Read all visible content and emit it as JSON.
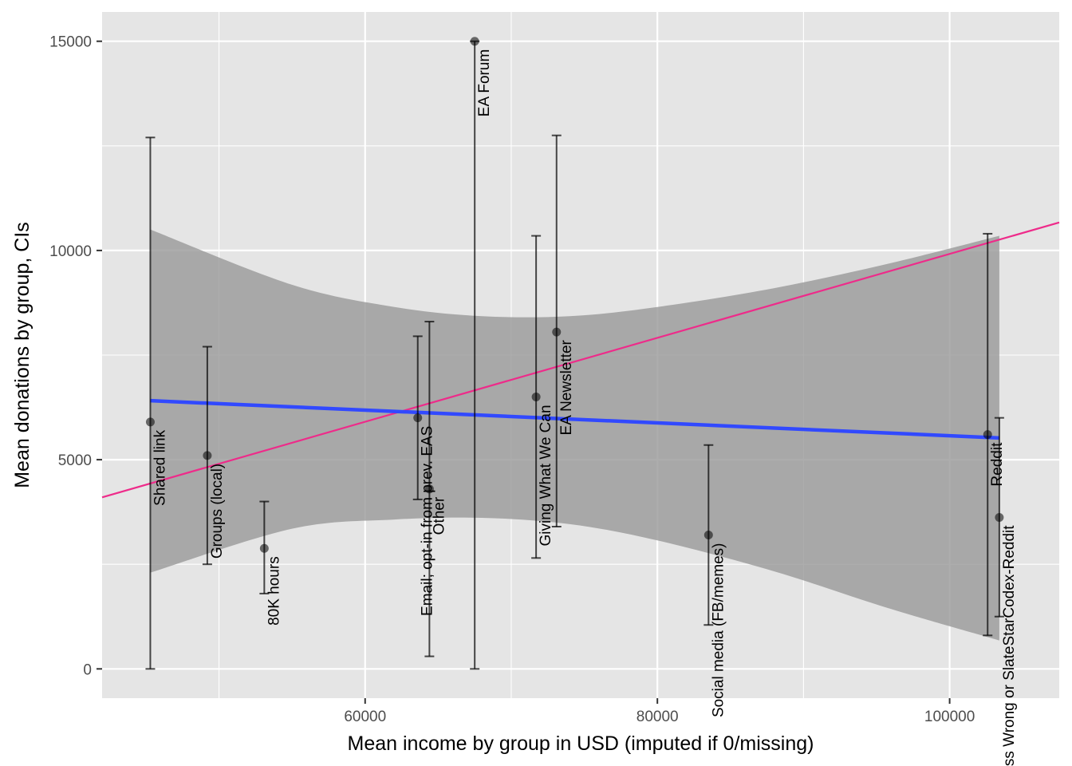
{
  "chart_data": {
    "type": "scatter",
    "xlabel": "Mean income by group in USD (imputed if 0/missing)",
    "ylabel": "Mean donations by group, CIs",
    "xlim": [
      42000,
      107500
    ],
    "ylim": [
      -700,
      15700
    ],
    "x_ticks": [
      60000,
      80000,
      100000
    ],
    "x_tick_labels": [
      "60000",
      "80000",
      "100000"
    ],
    "x_minor_ticks": [
      50000,
      70000,
      90000
    ],
    "y_ticks": [
      0,
      5000,
      10000,
      15000
    ],
    "y_tick_labels": [
      "0",
      "5000",
      "10000",
      "15000"
    ],
    "y_minor_ticks": [
      2500,
      7500,
      12500
    ],
    "grid": true,
    "points": [
      {
        "label": "Shared link",
        "x": 45300,
        "y": 5900,
        "ci_low": 0,
        "ci_high": 12700
      },
      {
        "label": "Groups (local)",
        "x": 49200,
        "y": 5100,
        "ci_low": 2500,
        "ci_high": 7700
      },
      {
        "label": "80K hours",
        "x": 53100,
        "y": 2880,
        "ci_low": 1800,
        "ci_high": 4000
      },
      {
        "label": "Email; opt-in from prev. EAS",
        "x": 63600,
        "y": 6000,
        "ci_low": 4050,
        "ci_high": 7950
      },
      {
        "label": "Other",
        "x": 64400,
        "y": 4300,
        "ci_low": 300,
        "ci_high": 8300
      },
      {
        "label": "EA Forum",
        "x": 67500,
        "y": 15000,
        "ci_low": 0,
        "ci_high": 15000
      },
      {
        "label": "Giving What We Can",
        "x": 71700,
        "y": 6500,
        "ci_low": 2650,
        "ci_high": 10350
      },
      {
        "label": "EA Newsletter",
        "x": 73100,
        "y": 8050,
        "ci_low": 3400,
        "ci_high": 12750
      },
      {
        "label": "Social media (FB/memes)",
        "x": 83500,
        "y": 3200,
        "ci_low": 1050,
        "ci_high": 5350
      },
      {
        "label": "Reddit",
        "x": 102600,
        "y": 5600,
        "ci_low": 800,
        "ci_high": 10400
      },
      {
        "label": "Less Wrong or SlateStarCodex-Reddit",
        "x": 103400,
        "y": 3620,
        "ci_low": 1250,
        "ci_high": 6000
      }
    ],
    "weighted_fit": {
      "x_start": 45300,
      "y_start": 6410,
      "x_end": 103400,
      "y_end": 5520
    },
    "confidence_band": [
      {
        "x": 45300,
        "lower": 2300,
        "upper": 10500
      },
      {
        "x": 55000,
        "lower": 3350,
        "upper": 9180
      },
      {
        "x": 62000,
        "lower": 3570,
        "upper": 8650
      },
      {
        "x": 68000,
        "lower": 3610,
        "upper": 8430
      },
      {
        "x": 74000,
        "lower": 3460,
        "upper": 8430
      },
      {
        "x": 80000,
        "lower": 3070,
        "upper": 8650
      },
      {
        "x": 88000,
        "lower": 2330,
        "upper": 9100
      },
      {
        "x": 96000,
        "lower": 1430,
        "upper": 9700
      },
      {
        "x": 103400,
        "lower": 680,
        "upper": 10350
      }
    ],
    "unweighted_fit": {
      "x_start": 42000,
      "y_start": 4100,
      "x_end": 107500,
      "y_end": 10670
    },
    "colors": {
      "panel": "#e5e5e5",
      "grid": "#ffffff",
      "band": "#999999",
      "weighted_line": "#3149ff",
      "unweighted_line": "#ee2b8a",
      "errorbar": "#000000",
      "point": "#000000"
    }
  }
}
